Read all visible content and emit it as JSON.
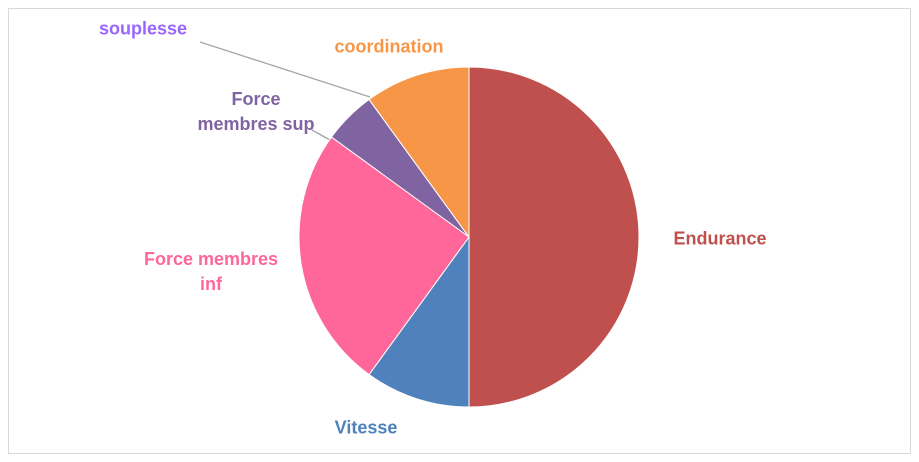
{
  "chart_data": {
    "type": "pie",
    "categories": [
      "Endurance",
      "Vitesse",
      "Force membres inf",
      "Force membres sup",
      "souplesse",
      "coordination"
    ],
    "values": [
      50,
      10,
      25,
      5,
      0,
      10
    ],
    "colors": [
      "#c0504d",
      "#4f81bd",
      "#ff6699",
      "#8064a2",
      "#9966ff",
      "#f79646"
    ]
  }
}
